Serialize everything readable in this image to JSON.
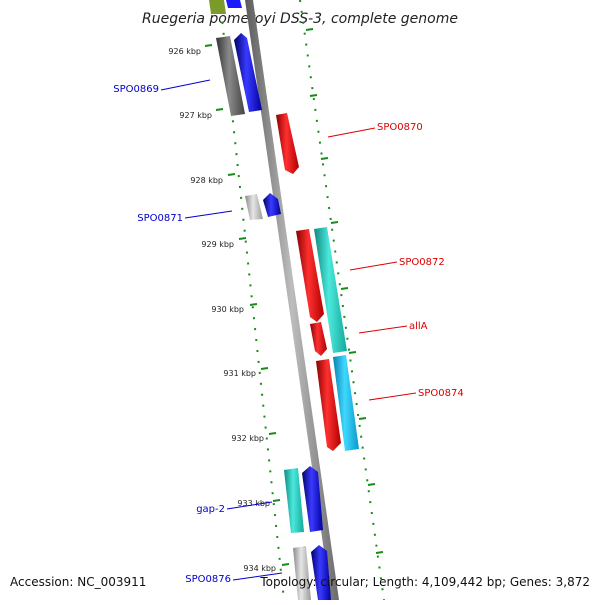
{
  "title": "Ruegeria pomeroyi DSS-3, complete genome",
  "footer": {
    "accession": "Accession: NC_003911",
    "topology": "Topology: circular; Length: 4,109,442 bp; Genes: 3,872"
  },
  "ticks": [
    "926 kbp",
    "927 kbp",
    "928 kbp",
    "929 kbp",
    "930 kbp",
    "931 kbp",
    "932 kbp",
    "933 kbp",
    "934 kbp"
  ],
  "labels": {
    "spo0869": "SPO0869",
    "spo0870": "SPO0870",
    "spo0871": "SPO0871",
    "spo0872": "SPO0872",
    "alla": "allA",
    "spo0874": "SPO0874",
    "gap2": "gap-2",
    "spo0876": "SPO0876"
  },
  "colors": {
    "forward_label": "#0000cc",
    "reverse_label": "#dd0000",
    "backbone": "#8c8c8c",
    "ruler": "#1a8a1a",
    "red": "#ff1a1a",
    "blue": "#1a1aff",
    "teal": "#2ad4c8",
    "cyan": "#22c8ff",
    "gray_dark": "#6e6e6e",
    "gray_light": "#bdbdbd",
    "olive": "#7a9a2a"
  }
}
